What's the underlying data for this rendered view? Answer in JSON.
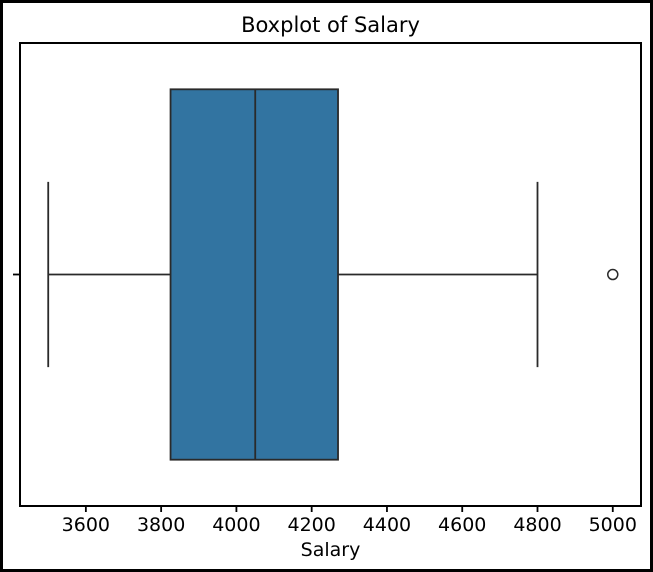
{
  "window": {
    "background": "#ffffff",
    "border_color": "#000000"
  },
  "chart_data": {
    "type": "boxplot",
    "orientation": "horizontal",
    "title": "Boxplot of Salary",
    "xlabel": "Salary",
    "ylabel": "",
    "stats": {
      "whisker_low": 3500,
      "q1": 3825,
      "median": 4050,
      "q3": 4270,
      "whisker_high": 4800,
      "outliers": [
        5000
      ]
    },
    "xlim": [
      3425,
      5075
    ],
    "xticks": [
      3600,
      3800,
      4000,
      4200,
      4400,
      4600,
      4800,
      5000
    ],
    "grid": false,
    "legend": "none",
    "box_fill": "#3274A1",
    "line_color": "#2a2a2a",
    "spine_color": "#000000",
    "text_color": "#000000"
  }
}
